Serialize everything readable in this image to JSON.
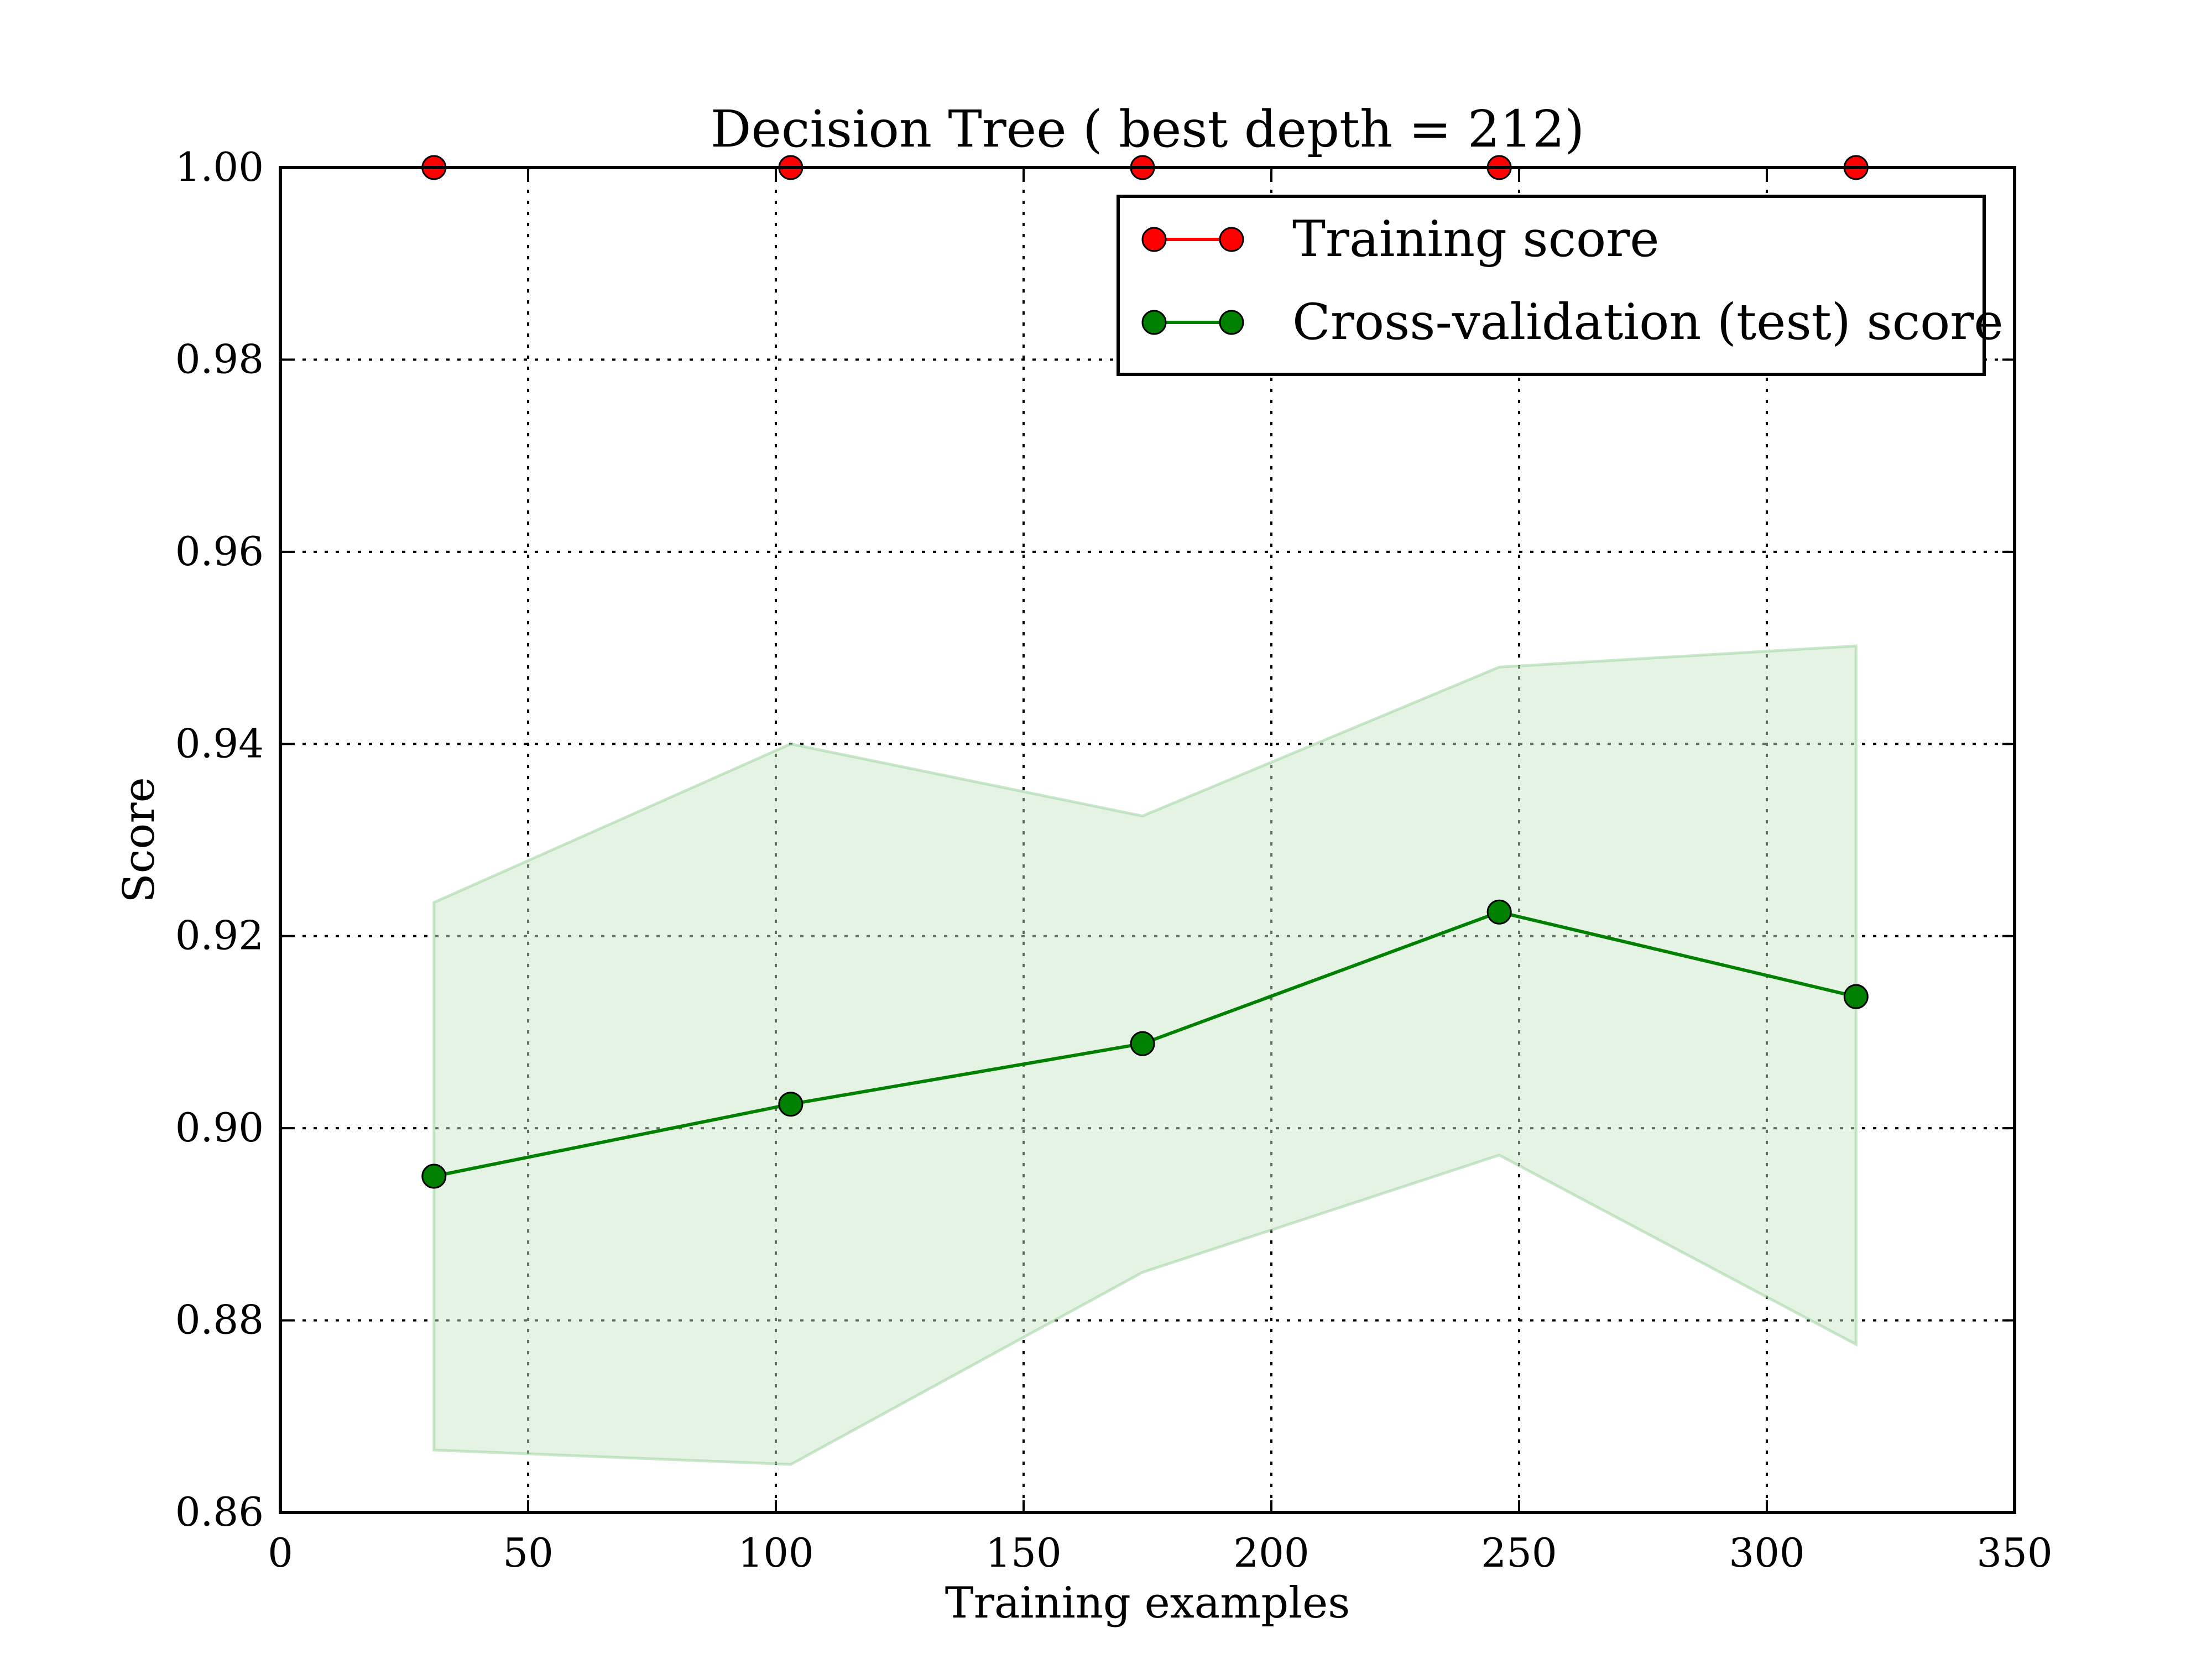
{
  "chart_data": {
    "type": "line",
    "title": "Decision Tree ( best depth = 212)",
    "xlabel": "Training examples",
    "ylabel": "Score",
    "xlim": [
      0,
      350
    ],
    "ylim": [
      0.86,
      1.0
    ],
    "x_ticks": [
      0,
      50,
      100,
      150,
      200,
      250,
      300,
      350
    ],
    "y_ticks": [
      0.86,
      0.88,
      0.9,
      0.92,
      0.94,
      0.96,
      0.98,
      1.0
    ],
    "x_tick_labels": [
      "0",
      "50",
      "100",
      "150",
      "200",
      "250",
      "300",
      "350"
    ],
    "y_tick_labels": [
      "0.86",
      "0.88",
      "0.90",
      "0.92",
      "0.94",
      "0.96",
      "0.98",
      "1.00"
    ],
    "grid": true,
    "legend_position": "top-right",
    "x": [
      31,
      103,
      174,
      246,
      318
    ],
    "series": [
      {
        "name": "Training score",
        "color": "#ff0000",
        "values": [
          1.0,
          1.0,
          1.0,
          1.0,
          1.0
        ]
      },
      {
        "name": "Cross-validation (test) score",
        "color": "#008000",
        "values": [
          0.895,
          0.9025,
          0.9088,
          0.9225,
          0.9137
        ],
        "band_lower": [
          0.8665,
          0.865,
          0.885,
          0.8972,
          0.8775
        ],
        "band_upper": [
          0.9235,
          0.94,
          0.9325,
          0.948,
          0.9502
        ]
      }
    ]
  }
}
